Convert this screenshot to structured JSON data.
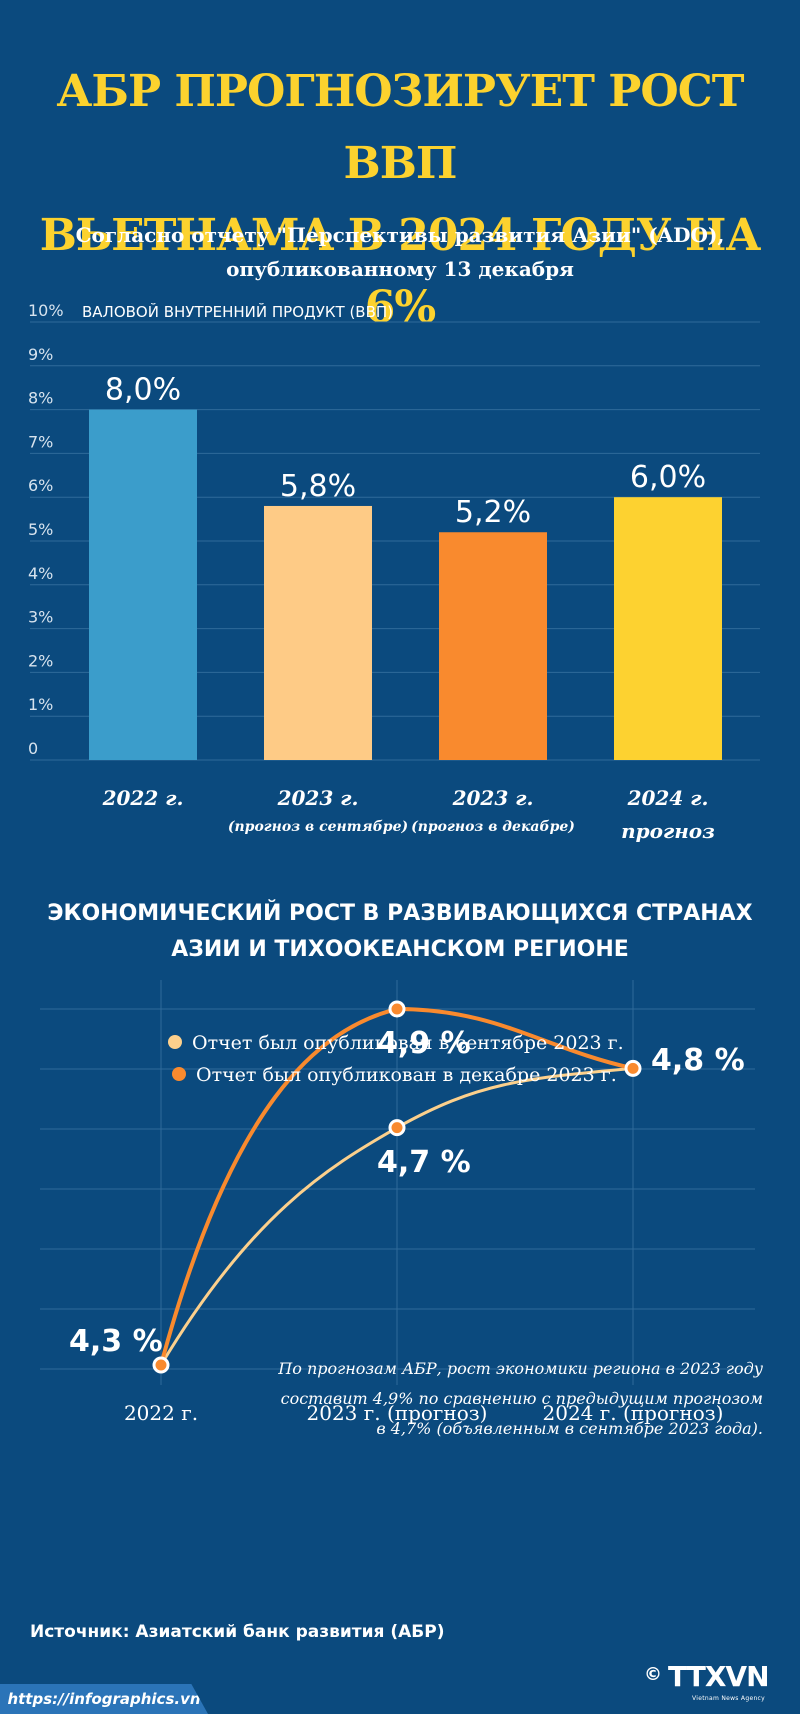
{
  "title": {
    "line1": "АБР ПРОГНОЗИРУЕТ РОСТ ВВП",
    "line2": "ВЬЕТНАМА В 2024 ГОДУ НА 6%"
  },
  "subtitle": {
    "line1": "Согласно отчету \"Перспективы развития Азии\" (ADO),",
    "line2": "опубликованному 13 декабря"
  },
  "colors": {
    "background": "#0b4a7e",
    "title": "#fcd22e",
    "bar_2022": "#3b9dcb",
    "bar_2023_sep": "#fecb86",
    "bar_2023_dec": "#f98a2e",
    "bar_2024": "#fdd230",
    "line_sep": "#fcd08c",
    "line_dec": "#f98a2e"
  },
  "chart_data": [
    {
      "type": "bar",
      "title": "ВАЛОВОЙ ВНУТРЕННИЙ ПРОДУКТ (ВВП)",
      "categories": [
        "2022 г.",
        "2023 г.",
        "2023 г.",
        "2024 г."
      ],
      "category_sublabels": [
        "",
        "(прогноз в сентябре)",
        "(прогноз в декабре)",
        "прогноз"
      ],
      "values": [
        8.0,
        5.8,
        5.2,
        6.0
      ],
      "value_labels": [
        "8,0%",
        "5,8%",
        "5,2%",
        "6,0%"
      ],
      "ylim": [
        0,
        10
      ],
      "yticks": [
        "0",
        "1%",
        "2%",
        "3%",
        "4%",
        "5%",
        "6%",
        "7%",
        "8%",
        "9%",
        "10%"
      ],
      "grid": true
    },
    {
      "type": "line",
      "title": "ЭКОНОМИЧЕСКИЙ РОСТ В РАЗВИВАЮЩИХСЯ СТРАНАХ АЗИИ И ТИХООКЕАНСКОМ РЕГИОНЕ",
      "title_lines": [
        "ЭКОНОМИЧЕСКИЙ РОСТ В РАЗВИВАЮЩИХСЯ СТРАНАХ",
        "АЗИИ И ТИХООКЕАНСКОМ РЕГИОНЕ"
      ],
      "x": [
        "2022 г.",
        "2023 г. (прогноз)",
        "2024 г. (прогноз)"
      ],
      "series": [
        {
          "name": "Отчет был опубликован в сентябре 2023 г.",
          "values": [
            4.3,
            4.7,
            4.8
          ]
        },
        {
          "name": "Отчет был опубликован в декабре 2023 г.",
          "values": [
            4.3,
            4.9,
            4.8
          ]
        }
      ],
      "point_labels": {
        "2022": "4,3 %",
        "2023_sep": "4,7 %",
        "2023_dec": "4,9 %",
        "2024": "4,8 %"
      },
      "ylim": [
        4.3,
        4.9
      ],
      "legend": "top-center",
      "grid": true
    }
  ],
  "note": {
    "line1": "По прогнозам АБР, рост экономики региона в 2023 году",
    "line2": "составит 4,9% по сравнению с предыдущим прогнозом",
    "line3": "в 4,7% (объявленным в сентябре 2023 года)."
  },
  "footer": {
    "source": "Источник: Азиатский банк развития (АБР)",
    "url": "https://infographics.vn",
    "copyright": "©",
    "logo": "TTXVN",
    "logo_sub": "Vietnam News Agency"
  }
}
